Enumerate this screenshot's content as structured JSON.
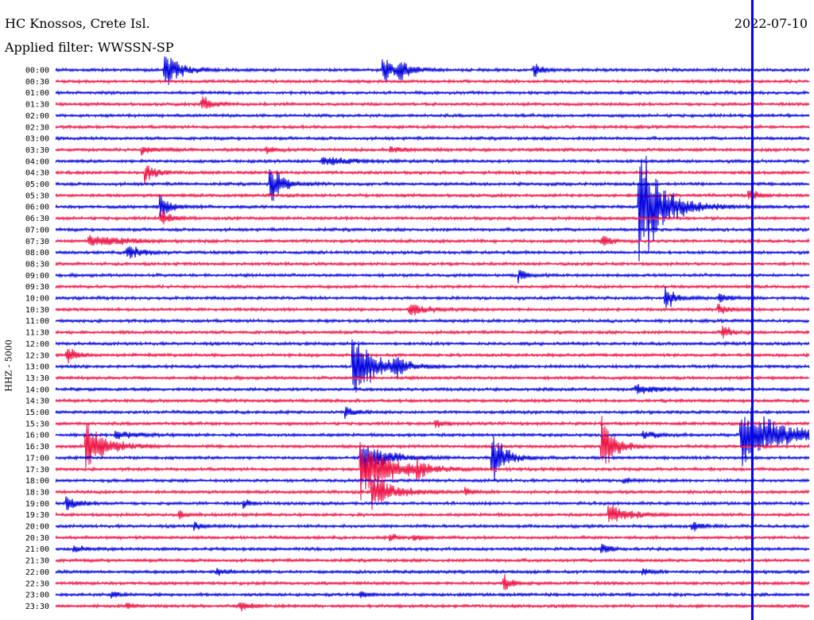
{
  "header": {
    "station": "HC Knossos, Crete Isl.",
    "filter": "Applied filter: WWSSN-SP",
    "date": "2022-07-10"
  },
  "chart_data": {
    "type": "line",
    "title": "HC Knossos, Crete Isl.",
    "ylabel": "HHZ - 5000",
    "row_labels": [
      "00:00",
      "00:30",
      "01:00",
      "01:30",
      "02:00",
      "02:30",
      "03:00",
      "03:30",
      "04:00",
      "04:30",
      "05:00",
      "05:30",
      "06:00",
      "06:30",
      "07:00",
      "07:30",
      "08:00",
      "08:30",
      "09:00",
      "09:30",
      "10:00",
      "10:30",
      "11:00",
      "11:30",
      "12:00",
      "12:30",
      "13:00",
      "13:30",
      "14:00",
      "14:30",
      "15:00",
      "15:30",
      "16:00",
      "16:30",
      "17:00",
      "17:30",
      "18:00",
      "18:30",
      "19:00",
      "19:30",
      "20:00",
      "20:30",
      "21:00",
      "21:30",
      "22:00",
      "22:30",
      "23:00",
      "23:30"
    ],
    "series_colors": [
      "#0000dd",
      "#ee1144"
    ],
    "noise_amplitude": 1.6,
    "events": [
      {
        "row": 0,
        "pos": 0.145,
        "amp": 26,
        "dur": 0.02
      },
      {
        "row": 0,
        "pos": 0.435,
        "amp": 18,
        "dur": 0.015
      },
      {
        "row": 0,
        "pos": 0.455,
        "amp": 14,
        "dur": 0.015
      },
      {
        "row": 0,
        "pos": 0.635,
        "amp": 10,
        "dur": 0.01
      },
      {
        "row": 3,
        "pos": 0.195,
        "amp": 14,
        "dur": 0.012
      },
      {
        "row": 7,
        "pos": 0.115,
        "amp": 6,
        "dur": 0.02
      },
      {
        "row": 7,
        "pos": 0.28,
        "amp": 6,
        "dur": 0.012
      },
      {
        "row": 7,
        "pos": 0.445,
        "amp": 5,
        "dur": 0.015
      },
      {
        "row": 8,
        "pos": 0.355,
        "amp": 7,
        "dur": 0.03
      },
      {
        "row": 9,
        "pos": 0.12,
        "amp": 14,
        "dur": 0.012
      },
      {
        "row": 10,
        "pos": 0.285,
        "amp": 30,
        "dur": 0.015
      },
      {
        "row": 11,
        "pos": 0.92,
        "amp": 10,
        "dur": 0.01
      },
      {
        "row": 12,
        "pos": 0.14,
        "amp": 18,
        "dur": 0.012
      },
      {
        "row": 12,
        "pos": 0.775,
        "amp": 90,
        "dur": 0.03
      },
      {
        "row": 13,
        "pos": 0.14,
        "amp": 12,
        "dur": 0.012
      },
      {
        "row": 15,
        "pos": 0.045,
        "amp": 10,
        "dur": 0.04
      },
      {
        "row": 15,
        "pos": 0.725,
        "amp": 10,
        "dur": 0.01
      },
      {
        "row": 16,
        "pos": 0.095,
        "amp": 14,
        "dur": 0.015
      },
      {
        "row": 18,
        "pos": 0.615,
        "amp": 10,
        "dur": 0.01
      },
      {
        "row": 20,
        "pos": 0.81,
        "amp": 18,
        "dur": 0.012
      },
      {
        "row": 20,
        "pos": 0.88,
        "amp": 6,
        "dur": 0.015
      },
      {
        "row": 21,
        "pos": 0.47,
        "amp": 10,
        "dur": 0.02
      },
      {
        "row": 21,
        "pos": 0.88,
        "amp": 8,
        "dur": 0.012
      },
      {
        "row": 23,
        "pos": 0.885,
        "amp": 12,
        "dur": 0.01
      },
      {
        "row": 25,
        "pos": 0.015,
        "amp": 12,
        "dur": 0.012
      },
      {
        "row": 26,
        "pos": 0.395,
        "amp": 55,
        "dur": 0.025
      },
      {
        "row": 26,
        "pos": 0.45,
        "amp": 16,
        "dur": 0.012
      },
      {
        "row": 28,
        "pos": 0.77,
        "amp": 6,
        "dur": 0.03
      },
      {
        "row": 30,
        "pos": 0.385,
        "amp": 8,
        "dur": 0.012
      },
      {
        "row": 31,
        "pos": 0.505,
        "amp": 6,
        "dur": 0.012
      },
      {
        "row": 32,
        "pos": 0.08,
        "amp": 5,
        "dur": 0.03
      },
      {
        "row": 32,
        "pos": 0.78,
        "amp": 6,
        "dur": 0.02
      },
      {
        "row": 32,
        "pos": 0.91,
        "amp": 45,
        "dur": 0.05
      },
      {
        "row": 33,
        "pos": 0.04,
        "amp": 40,
        "dur": 0.025
      },
      {
        "row": 33,
        "pos": 0.725,
        "amp": 50,
        "dur": 0.015
      },
      {
        "row": 34,
        "pos": 0.58,
        "amp": 40,
        "dur": 0.015
      },
      {
        "row": 34,
        "pos": 0.405,
        "amp": 25,
        "dur": 0.03
      },
      {
        "row": 35,
        "pos": 0.405,
        "amp": 40,
        "dur": 0.04
      },
      {
        "row": 35,
        "pos": 0.48,
        "amp": 12,
        "dur": 0.01
      },
      {
        "row": 36,
        "pos": 0.755,
        "amp": 5,
        "dur": 0.01
      },
      {
        "row": 37,
        "pos": 0.42,
        "amp": 30,
        "dur": 0.025
      },
      {
        "row": 37,
        "pos": 0.545,
        "amp": 6,
        "dur": 0.01
      },
      {
        "row": 38,
        "pos": 0.015,
        "amp": 12,
        "dur": 0.015
      },
      {
        "row": 38,
        "pos": 0.25,
        "amp": 6,
        "dur": 0.01
      },
      {
        "row": 39,
        "pos": 0.165,
        "amp": 6,
        "dur": 0.01
      },
      {
        "row": 39,
        "pos": 0.735,
        "amp": 16,
        "dur": 0.025
      },
      {
        "row": 40,
        "pos": 0.185,
        "amp": 5,
        "dur": 0.015
      },
      {
        "row": 40,
        "pos": 0.845,
        "amp": 8,
        "dur": 0.01
      },
      {
        "row": 41,
        "pos": 0.445,
        "amp": 5,
        "dur": 0.01
      },
      {
        "row": 41,
        "pos": 0.475,
        "amp": 5,
        "dur": 0.01
      },
      {
        "row": 42,
        "pos": 0.025,
        "amp": 6,
        "dur": 0.01
      },
      {
        "row": 42,
        "pos": 0.725,
        "amp": 9,
        "dur": 0.01
      },
      {
        "row": 44,
        "pos": 0.215,
        "amp": 8,
        "dur": 0.01
      },
      {
        "row": 44,
        "pos": 0.78,
        "amp": 6,
        "dur": 0.01
      },
      {
        "row": 45,
        "pos": 0.595,
        "amp": 14,
        "dur": 0.01
      },
      {
        "row": 46,
        "pos": 0.075,
        "amp": 5,
        "dur": 0.01
      },
      {
        "row": 46,
        "pos": 0.405,
        "amp": 5,
        "dur": 0.01
      },
      {
        "row": 47,
        "pos": 0.095,
        "amp": 5,
        "dur": 0.01
      },
      {
        "row": 47,
        "pos": 0.245,
        "amp": 9,
        "dur": 0.01
      }
    ],
    "marker_position": 0.9245
  }
}
